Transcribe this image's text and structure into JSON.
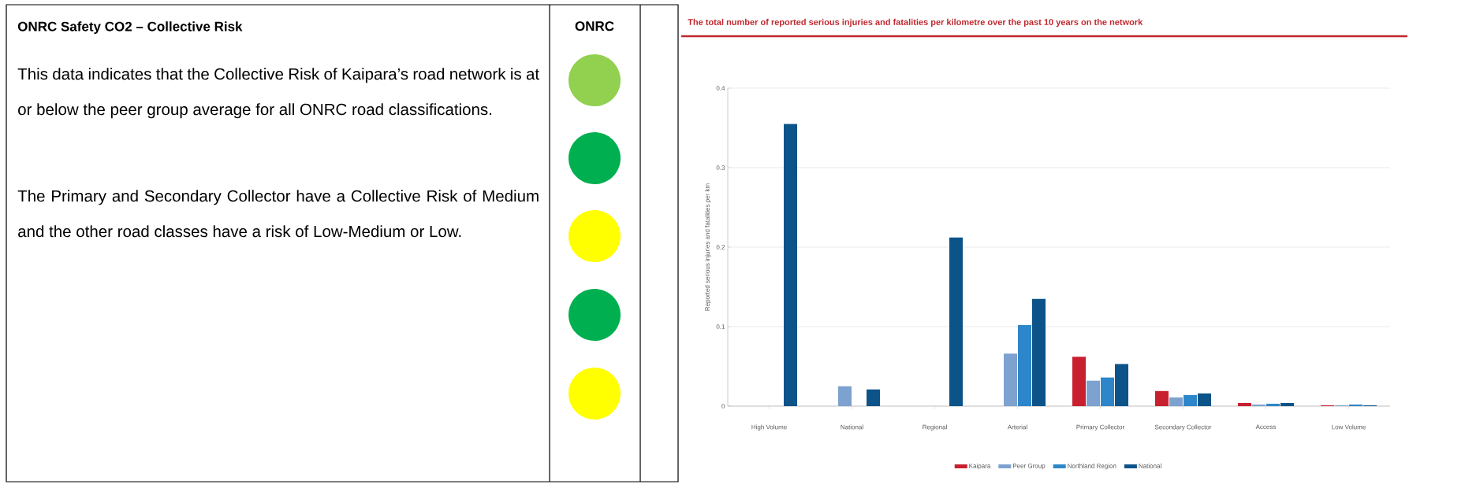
{
  "chart_data": [
    {
      "type": "other",
      "title": "ONRC Safety CO2 – Collective Risk",
      "annotations": [
        "ONRC",
        "This data indicates that the Collective Risk of Kaipara’s road network is at or below the peer group average for all ONRC road classifications.",
        "The Primary and Secondary Collector have a Collective Risk of Medium and the other road classes have a risk of Low-Medium or Low."
      ]
    },
    {
      "type": "bar",
      "title": "The total number of reported serious injuries and fatalities per kilometre over the past 10 years on the network",
      "ylabel": "Reported serious injuries and fatalities per km",
      "categories": [
        "High Volume",
        "National",
        "Regional",
        "Arterial",
        "Primary Collector",
        "Secondary Collector",
        "Access",
        "Low Volume"
      ],
      "series": [
        {
          "name": "Kaipara",
          "color": "#c8202f",
          "values": [
            null,
            null,
            null,
            null,
            0.062,
            0.019,
            0.004,
            0.001
          ]
        },
        {
          "name": "Peer Group",
          "color": "#7ea2cf",
          "values": [
            null,
            0.025,
            null,
            0.066,
            0.032,
            0.011,
            0.002,
            0.001
          ]
        },
        {
          "name": "Northland Region",
          "color": "#2d86c9",
          "values": [
            null,
            null,
            null,
            0.102,
            0.036,
            0.014,
            0.003,
            0.002
          ]
        },
        {
          "name": "National",
          "color": "#0b5389",
          "values": [
            0.355,
            0.021,
            0.212,
            0.135,
            0.053,
            0.016,
            0.004,
            0.001
          ]
        }
      ],
      "ylim": [
        0,
        0.4
      ],
      "yticks": [
        0,
        0.1,
        0.2,
        0.3,
        0.4
      ],
      "grid": "y",
      "legend": "bottom"
    }
  ]
}
